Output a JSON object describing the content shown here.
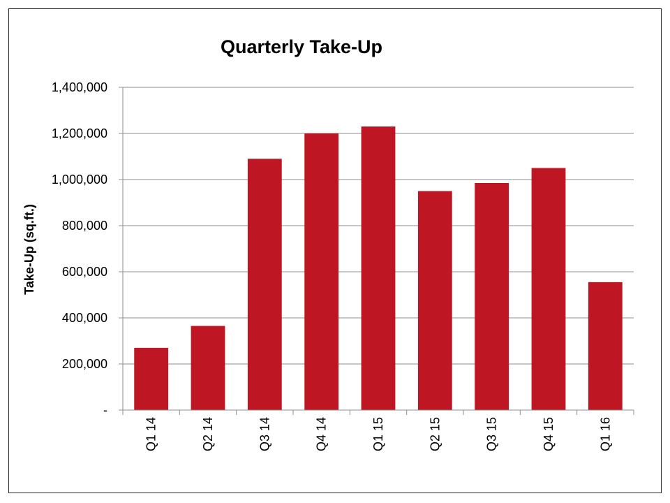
{
  "chart_data": {
    "type": "bar",
    "title": "Quarterly Take-Up",
    "xlabel": "",
    "ylabel": "Take-Up (sq.ft.)",
    "categories": [
      "Q1 14",
      "Q2 14",
      "Q3 14",
      "Q4 14",
      "Q1 15",
      "Q2 15",
      "Q3 15",
      "Q4 15",
      "Q1 16"
    ],
    "values": [
      270000,
      365000,
      1090000,
      1200000,
      1230000,
      950000,
      985000,
      1050000,
      555000
    ],
    "ylim": [
      0,
      1400000
    ],
    "y_ticks": [
      0,
      200000,
      400000,
      600000,
      800000,
      1000000,
      1200000,
      1400000
    ],
    "y_tick_labels": [
      "-",
      "200,000",
      "400,000",
      "600,000",
      "800,000",
      "1,000,000",
      "1,200,000",
      "1,400,000"
    ],
    "grid": true,
    "legend": "none",
    "bar_color": "#BE1622",
    "grid_color": "#8c8c8c"
  }
}
